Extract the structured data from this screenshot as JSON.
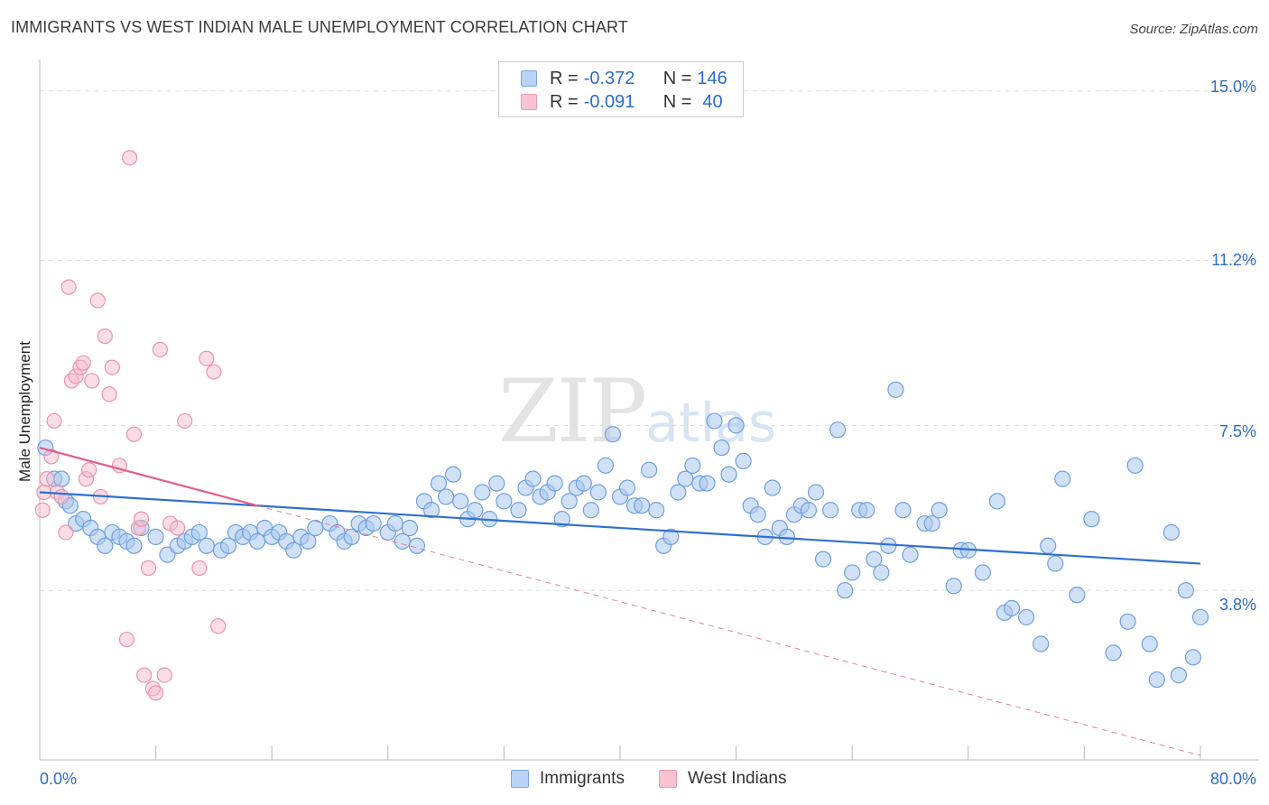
{
  "header": {
    "title": "IMMIGRANTS VS WEST INDIAN MALE UNEMPLOYMENT CORRELATION CHART",
    "source": "Source: ZipAtlas.com"
  },
  "watermark": {
    "zip": "ZIP",
    "atlas": "atlas"
  },
  "legend": {
    "r_label": "R =",
    "n_label": "N =",
    "series": [
      {
        "name": "Immigrants",
        "r": "-0.372",
        "n": "146"
      },
      {
        "name": "West Indians",
        "r": "-0.091",
        "n": "40"
      }
    ]
  },
  "colors": {
    "blue_fill": "#a9c8ef",
    "blue_stroke": "#6f9fdf",
    "blue_line": "#2f6fcf",
    "pink_fill": "#f6bccc",
    "pink_stroke": "#eb93ab",
    "pink_line": "#e0608a",
    "grid": "#dddddd",
    "tick_text": "#2c6bcc"
  },
  "chart_data": {
    "type": "scatter",
    "title": "IMMIGRANTS VS WEST INDIAN MALE UNEMPLOYMENT CORRELATION CHART",
    "xlabel": "",
    "ylabel": "Male Unemployment",
    "xlim": [
      0,
      80
    ],
    "ylim": [
      0,
      15.5
    ],
    "x_tick_labels": [
      "0.0%",
      "80.0%"
    ],
    "y_ticks": [
      3.8,
      7.5,
      11.2,
      15.0
    ],
    "y_tick_labels": [
      "3.8%",
      "7.5%",
      "11.2%",
      "15.0%"
    ],
    "grid": "horizontal dashed",
    "legend_position": "top-center",
    "series": [
      {
        "name": "Immigrants",
        "trend": {
          "x": [
            0,
            80
          ],
          "y": [
            6.0,
            4.4
          ]
        },
        "points": [
          [
            0.4,
            7.0
          ],
          [
            1.0,
            6.3
          ],
          [
            1.5,
            6.3
          ],
          [
            1.8,
            5.8
          ],
          [
            2.1,
            5.7
          ],
          [
            2.5,
            5.3
          ],
          [
            3.0,
            5.4
          ],
          [
            3.5,
            5.2
          ],
          [
            4.0,
            5.0
          ],
          [
            4.5,
            4.8
          ],
          [
            5.0,
            5.1
          ],
          [
            5.5,
            5.0
          ],
          [
            6.0,
            4.9
          ],
          [
            6.5,
            4.8
          ],
          [
            7.0,
            5.2
          ],
          [
            8.0,
            5.0
          ],
          [
            8.8,
            4.6
          ],
          [
            9.5,
            4.8
          ],
          [
            10.0,
            4.9
          ],
          [
            10.5,
            5.0
          ],
          [
            11.0,
            5.1
          ],
          [
            11.5,
            4.8
          ],
          [
            12.5,
            4.7
          ],
          [
            13.0,
            4.8
          ],
          [
            13.5,
            5.1
          ],
          [
            14.0,
            5.0
          ],
          [
            14.5,
            5.1
          ],
          [
            15.0,
            4.9
          ],
          [
            15.5,
            5.2
          ],
          [
            16.0,
            5.0
          ],
          [
            16.5,
            5.1
          ],
          [
            17.0,
            4.9
          ],
          [
            17.5,
            4.7
          ],
          [
            18.0,
            5.0
          ],
          [
            18.5,
            4.9
          ],
          [
            19.0,
            5.2
          ],
          [
            20.0,
            5.3
          ],
          [
            20.5,
            5.1
          ],
          [
            21.0,
            4.9
          ],
          [
            21.5,
            5.0
          ],
          [
            22.0,
            5.3
          ],
          [
            22.5,
            5.2
          ],
          [
            23.0,
            5.3
          ],
          [
            24.0,
            5.1
          ],
          [
            24.5,
            5.3
          ],
          [
            25.0,
            4.9
          ],
          [
            25.5,
            5.2
          ],
          [
            26.0,
            4.8
          ],
          [
            26.5,
            5.8
          ],
          [
            27.0,
            5.6
          ],
          [
            27.5,
            6.2
          ],
          [
            28.0,
            5.9
          ],
          [
            28.5,
            6.4
          ],
          [
            29.0,
            5.8
          ],
          [
            29.5,
            5.4
          ],
          [
            30.0,
            5.6
          ],
          [
            30.5,
            6.0
          ],
          [
            31.0,
            5.4
          ],
          [
            31.5,
            6.2
          ],
          [
            32.0,
            5.8
          ],
          [
            33.0,
            5.6
          ],
          [
            33.5,
            6.1
          ],
          [
            34.0,
            6.3
          ],
          [
            34.5,
            5.9
          ],
          [
            35.0,
            6.0
          ],
          [
            35.5,
            6.2
          ],
          [
            36.0,
            5.4
          ],
          [
            36.5,
            5.8
          ],
          [
            37.0,
            6.1
          ],
          [
            37.5,
            6.2
          ],
          [
            38.0,
            5.6
          ],
          [
            38.5,
            6.0
          ],
          [
            39.0,
            6.6
          ],
          [
            39.5,
            7.3
          ],
          [
            40.0,
            5.9
          ],
          [
            40.5,
            6.1
          ],
          [
            41.0,
            5.7
          ],
          [
            41.5,
            5.7
          ],
          [
            42.0,
            6.5
          ],
          [
            42.5,
            5.6
          ],
          [
            43.0,
            4.8
          ],
          [
            43.5,
            5.0
          ],
          [
            44.0,
            6.0
          ],
          [
            44.5,
            6.3
          ],
          [
            45.0,
            6.6
          ],
          [
            45.5,
            6.2
          ],
          [
            46.0,
            6.2
          ],
          [
            46.5,
            7.6
          ],
          [
            47.0,
            7.0
          ],
          [
            47.5,
            6.4
          ],
          [
            48.0,
            7.5
          ],
          [
            48.5,
            6.7
          ],
          [
            49.0,
            5.7
          ],
          [
            49.5,
            5.5
          ],
          [
            50.0,
            5.0
          ],
          [
            50.5,
            6.1
          ],
          [
            51.0,
            5.2
          ],
          [
            51.5,
            5.0
          ],
          [
            52.0,
            5.5
          ],
          [
            52.5,
            5.7
          ],
          [
            53.0,
            5.6
          ],
          [
            53.5,
            6.0
          ],
          [
            54.0,
            4.5
          ],
          [
            54.5,
            5.6
          ],
          [
            55.0,
            7.4
          ],
          [
            55.5,
            3.8
          ],
          [
            56.0,
            4.2
          ],
          [
            56.5,
            5.6
          ],
          [
            57.0,
            5.6
          ],
          [
            57.5,
            4.5
          ],
          [
            58.0,
            4.2
          ],
          [
            58.5,
            4.8
          ],
          [
            59.0,
            8.3
          ],
          [
            59.5,
            5.6
          ],
          [
            60.0,
            4.6
          ],
          [
            61.0,
            5.3
          ],
          [
            61.5,
            5.3
          ],
          [
            62.0,
            5.6
          ],
          [
            63.0,
            3.9
          ],
          [
            63.5,
            4.7
          ],
          [
            64.0,
            4.7
          ],
          [
            65.0,
            4.2
          ],
          [
            66.0,
            5.8
          ],
          [
            66.5,
            3.3
          ],
          [
            67.0,
            3.4
          ],
          [
            68.0,
            3.2
          ],
          [
            69.0,
            2.6
          ],
          [
            69.5,
            4.8
          ],
          [
            70.0,
            4.4
          ],
          [
            70.5,
            6.3
          ],
          [
            71.5,
            3.7
          ],
          [
            72.5,
            5.4
          ],
          [
            74.0,
            2.4
          ],
          [
            75.0,
            3.1
          ],
          [
            75.5,
            6.6
          ],
          [
            76.5,
            2.6
          ],
          [
            77.0,
            1.8
          ],
          [
            78.0,
            5.1
          ],
          [
            78.5,
            1.9
          ],
          [
            79.0,
            3.8
          ],
          [
            79.5,
            2.3
          ],
          [
            80.0,
            3.2
          ]
        ]
      },
      {
        "name": "West Indians",
        "trend_solid": {
          "x": [
            0,
            15
          ],
          "y": [
            7.0,
            5.7
          ]
        },
        "trend_dashed": {
          "x": [
            15,
            80
          ],
          "y": [
            5.7,
            0.1
          ]
        },
        "points": [
          [
            0.2,
            5.6
          ],
          [
            0.3,
            6.0
          ],
          [
            0.5,
            6.3
          ],
          [
            0.8,
            6.8
          ],
          [
            1.0,
            7.6
          ],
          [
            1.2,
            6.0
          ],
          [
            1.5,
            5.9
          ],
          [
            1.8,
            5.1
          ],
          [
            2.0,
            10.6
          ],
          [
            2.2,
            8.5
          ],
          [
            2.5,
            8.6
          ],
          [
            2.8,
            8.8
          ],
          [
            3.0,
            8.9
          ],
          [
            3.2,
            6.3
          ],
          [
            3.4,
            6.5
          ],
          [
            3.6,
            8.5
          ],
          [
            4.0,
            10.3
          ],
          [
            4.2,
            5.9
          ],
          [
            4.5,
            9.5
          ],
          [
            4.8,
            8.2
          ],
          [
            5.0,
            8.8
          ],
          [
            5.5,
            6.6
          ],
          [
            6.0,
            2.7
          ],
          [
            6.2,
            13.5
          ],
          [
            6.5,
            7.3
          ],
          [
            6.8,
            5.2
          ],
          [
            7.0,
            5.4
          ],
          [
            7.5,
            4.3
          ],
          [
            7.8,
            1.6
          ],
          [
            8.0,
            1.5
          ],
          [
            8.3,
            9.2
          ],
          [
            8.6,
            1.9
          ],
          [
            9.0,
            5.3
          ],
          [
            9.5,
            5.2
          ],
          [
            10.0,
            7.6
          ],
          [
            11.0,
            4.3
          ],
          [
            11.5,
            9.0
          ],
          [
            12.0,
            8.7
          ],
          [
            12.3,
            3.0
          ],
          [
            7.2,
            1.9
          ]
        ]
      }
    ]
  }
}
